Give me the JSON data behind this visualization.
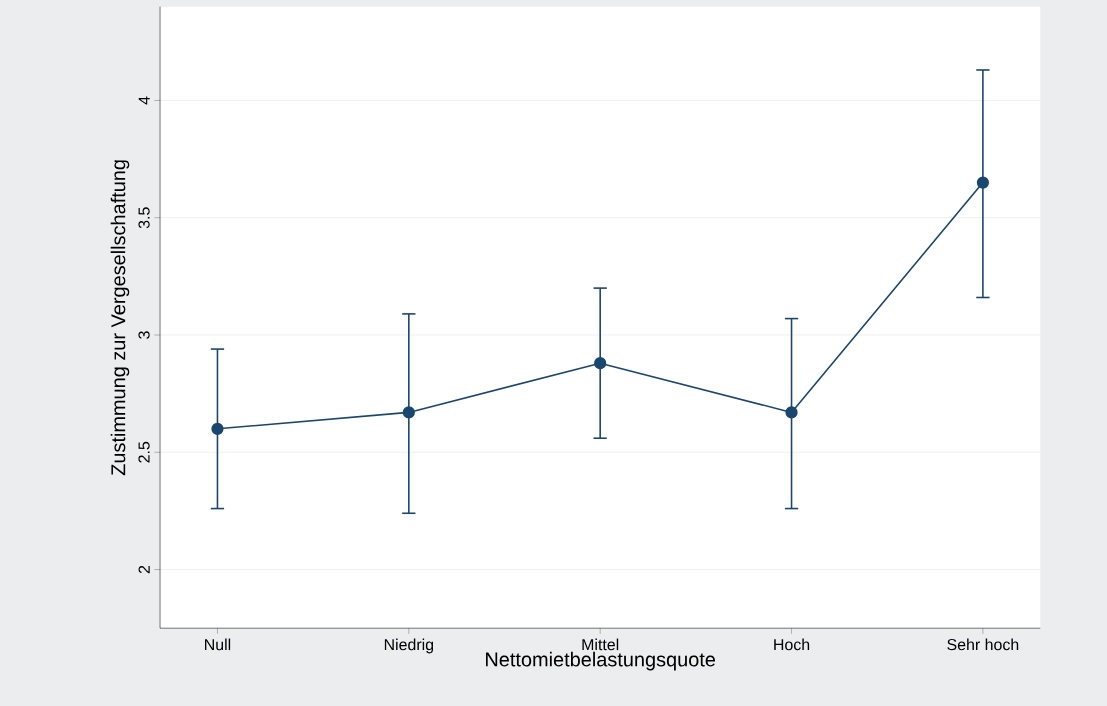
{
  "chart_data": {
    "type": "line",
    "xlabel": "Nettomietbelastungsquote",
    "ylabel": "Zustimmung zur Vergesellschaftung",
    "categories": [
      "Null",
      "Niedrig",
      "Mittel",
      "Hoch",
      "Sehr hoch"
    ],
    "series": [
      {
        "color": "#1a476f",
        "values": [
          2.6,
          2.67,
          2.88,
          2.67,
          3.65
        ],
        "errors": [
          [
            2.26,
            2.94
          ],
          [
            2.24,
            3.09
          ],
          [
            2.56,
            3.2
          ],
          [
            2.26,
            3.07
          ],
          [
            3.16,
            4.13
          ]
        ]
      }
    ],
    "ylim": [
      1.75,
      4.4
    ],
    "yticks": [
      2,
      2.5,
      3,
      3.5,
      4
    ],
    "grid": "y",
    "marker": "circle",
    "line_style": "solid"
  }
}
